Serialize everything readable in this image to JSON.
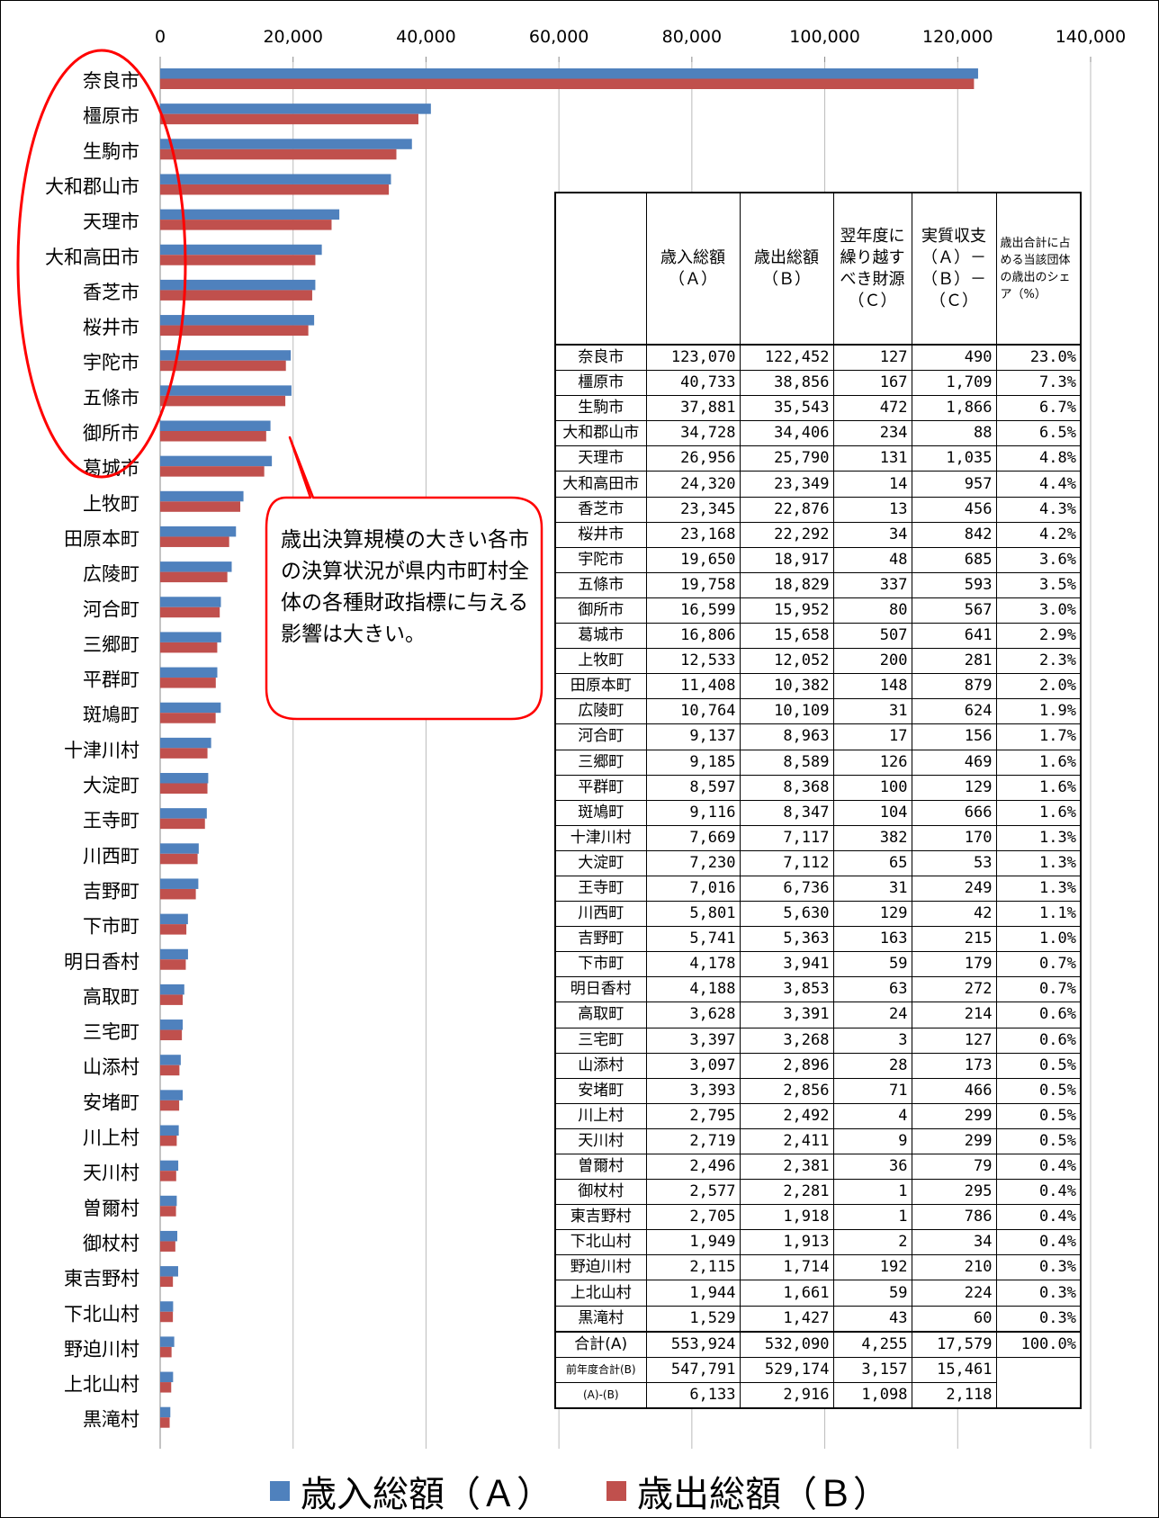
{
  "chart_data": {
    "type": "bar",
    "orientation": "horizontal",
    "x_ticks": [
      "0",
      "20,000",
      "40,000",
      "60,000",
      "80,000",
      "100,000",
      "120,000",
      "140,000"
    ],
    "xlim": [
      0,
      140000
    ],
    "grid": true,
    "legend_position": "bottom",
    "categories": [
      "奈良市",
      "橿原市",
      "生駒市",
      "大和郡山市",
      "天理市",
      "大和高田市",
      "香芝市",
      "桜井市",
      "宇陀市",
      "五條市",
      "御所市",
      "葛城市",
      "上牧町",
      "田原本町",
      "広陵町",
      "河合町",
      "三郷町",
      "平群町",
      "斑鳩町",
      "十津川村",
      "大淀町",
      "王寺町",
      "川西町",
      "吉野町",
      "下市町",
      "明日香村",
      "高取町",
      "三宅町",
      "山添村",
      "安堵町",
      "川上村",
      "天川村",
      "曽爾村",
      "御杖村",
      "東吉野村",
      "下北山村",
      "野迫川村",
      "上北山村",
      "黒滝村"
    ],
    "series": [
      {
        "name": "歳入総額（Ａ）",
        "color": "#4F81BD",
        "values": [
          123070,
          40733,
          37881,
          34728,
          26956,
          24320,
          23345,
          23168,
          19650,
          19758,
          16599,
          16806,
          12533,
          11408,
          10764,
          9137,
          9185,
          8597,
          9116,
          7669,
          7230,
          7016,
          5801,
          5741,
          4178,
          4188,
          3628,
          3397,
          3097,
          3393,
          2795,
          2719,
          2496,
          2577,
          2705,
          1949,
          2115,
          1944,
          1529
        ]
      },
      {
        "name": "歳出総額（Ｂ）",
        "color": "#C0504D",
        "values": [
          122452,
          38856,
          35543,
          34406,
          25790,
          23349,
          22876,
          22292,
          18917,
          18829,
          15952,
          15658,
          12052,
          10382,
          10109,
          8963,
          8589,
          8368,
          8347,
          7117,
          7112,
          6736,
          5630,
          5363,
          3941,
          3853,
          3391,
          3268,
          2896,
          2856,
          2492,
          2411,
          2381,
          2281,
          1918,
          1913,
          1714,
          1661,
          1427
        ]
      }
    ]
  },
  "table": {
    "headers": [
      "",
      "歳入総額（Ａ）",
      "歳出総額（Ｂ）",
      "翌年度に繰り越すべき財源（Ｃ）",
      "実質収支（Ａ）－（Ｂ）－（Ｃ）",
      "歳出合計に占める当該団体の歳出のシェア（%）"
    ],
    "rows": [
      [
        "奈良市",
        "123,070",
        "122,452",
        "127",
        "490",
        "23.0%"
      ],
      [
        "橿原市",
        "40,733",
        "38,856",
        "167",
        "1,709",
        "7.3%"
      ],
      [
        "生駒市",
        "37,881",
        "35,543",
        "472",
        "1,866",
        "6.7%"
      ],
      [
        "大和郡山市",
        "34,728",
        "34,406",
        "234",
        "88",
        "6.5%"
      ],
      [
        "天理市",
        "26,956",
        "25,790",
        "131",
        "1,035",
        "4.8%"
      ],
      [
        "大和高田市",
        "24,320",
        "23,349",
        "14",
        "957",
        "4.4%"
      ],
      [
        "香芝市",
        "23,345",
        "22,876",
        "13",
        "456",
        "4.3%"
      ],
      [
        "桜井市",
        "23,168",
        "22,292",
        "34",
        "842",
        "4.2%"
      ],
      [
        "宇陀市",
        "19,650",
        "18,917",
        "48",
        "685",
        "3.6%"
      ],
      [
        "五條市",
        "19,758",
        "18,829",
        "337",
        "593",
        "3.5%"
      ],
      [
        "御所市",
        "16,599",
        "15,952",
        "80",
        "567",
        "3.0%"
      ],
      [
        "葛城市",
        "16,806",
        "15,658",
        "507",
        "641",
        "2.9%"
      ],
      [
        "上牧町",
        "12,533",
        "12,052",
        "200",
        "281",
        "2.3%"
      ],
      [
        "田原本町",
        "11,408",
        "10,382",
        "148",
        "879",
        "2.0%"
      ],
      [
        "広陵町",
        "10,764",
        "10,109",
        "31",
        "624",
        "1.9%"
      ],
      [
        "河合町",
        "9,137",
        "8,963",
        "17",
        "156",
        "1.7%"
      ],
      [
        "三郷町",
        "9,185",
        "8,589",
        "126",
        "469",
        "1.6%"
      ],
      [
        "平群町",
        "8,597",
        "8,368",
        "100",
        "129",
        "1.6%"
      ],
      [
        "斑鳩町",
        "9,116",
        "8,347",
        "104",
        "666",
        "1.6%"
      ],
      [
        "十津川村",
        "7,669",
        "7,117",
        "382",
        "170",
        "1.3%"
      ],
      [
        "大淀町",
        "7,230",
        "7,112",
        "65",
        "53",
        "1.3%"
      ],
      [
        "王寺町",
        "7,016",
        "6,736",
        "31",
        "249",
        "1.3%"
      ],
      [
        "川西町",
        "5,801",
        "5,630",
        "129",
        "42",
        "1.1%"
      ],
      [
        "吉野町",
        "5,741",
        "5,363",
        "163",
        "215",
        "1.0%"
      ],
      [
        "下市町",
        "4,178",
        "3,941",
        "59",
        "179",
        "0.7%"
      ],
      [
        "明日香村",
        "4,188",
        "3,853",
        "63",
        "272",
        "0.7%"
      ],
      [
        "高取町",
        "3,628",
        "3,391",
        "24",
        "214",
        "0.6%"
      ],
      [
        "三宅町",
        "3,397",
        "3,268",
        "3",
        "127",
        "0.6%"
      ],
      [
        "山添村",
        "3,097",
        "2,896",
        "28",
        "173",
        "0.5%"
      ],
      [
        "安堵町",
        "3,393",
        "2,856",
        "71",
        "466",
        "0.5%"
      ],
      [
        "川上村",
        "2,795",
        "2,492",
        "4",
        "299",
        "0.5%"
      ],
      [
        "天川村",
        "2,719",
        "2,411",
        "9",
        "299",
        "0.5%"
      ],
      [
        "曽爾村",
        "2,496",
        "2,381",
        "36",
        "79",
        "0.4%"
      ],
      [
        "御杖村",
        "2,577",
        "2,281",
        "1",
        "295",
        "0.4%"
      ],
      [
        "東吉野村",
        "2,705",
        "1,918",
        "1",
        "786",
        "0.4%"
      ],
      [
        "下北山村",
        "1,949",
        "1,913",
        "2",
        "34",
        "0.4%"
      ],
      [
        "野迫川村",
        "2,115",
        "1,714",
        "192",
        "210",
        "0.3%"
      ],
      [
        "上北山村",
        "1,944",
        "1,661",
        "59",
        "224",
        "0.3%"
      ],
      [
        "黒滝村",
        "1,529",
        "1,427",
        "43",
        "60",
        "0.3%"
      ]
    ],
    "summary": [
      [
        "合計(A)",
        "553,924",
        "532,090",
        "4,255",
        "17,579",
        "100.0%"
      ],
      [
        "前年度合計(B)",
        "547,791",
        "529,174",
        "3,157",
        "15,461",
        ""
      ],
      [
        "(A)-(B)",
        "6,133",
        "2,916",
        "1,098",
        "2,118",
        ""
      ]
    ]
  },
  "callout": {
    "text": "歳出決算規模の大きい各市の決算状況が県内市町村全体の各種財政指標に与える影響は大きい。"
  },
  "legend": [
    {
      "label": "歳入総額（Ａ）",
      "color": "#4F81BD"
    },
    {
      "label": "歳出総額（Ｂ）",
      "color": "#C0504D"
    }
  ]
}
